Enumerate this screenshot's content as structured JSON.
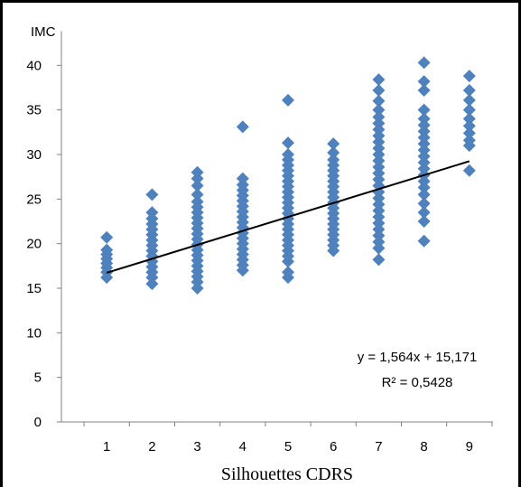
{
  "chart_data": {
    "type": "scatter",
    "ylabel": "IMC",
    "xlabel": "Silhouettes CDRS",
    "xlim": [
      0,
      10
    ],
    "ylim": [
      0,
      45
    ],
    "x_ticks": [
      1,
      2,
      3,
      4,
      5,
      6,
      7,
      8,
      9
    ],
    "y_ticks": [
      0,
      5,
      10,
      15,
      20,
      25,
      30,
      35,
      40
    ],
    "marker_color": "#4f81bd",
    "trendline": {
      "slope": 1.564,
      "intercept": 15.171,
      "equation": "y = 1,564x + 15,171",
      "r2": "R² = 0,5428",
      "color": "#000000"
    },
    "series": [
      {
        "points": [
          {
            "x": 1,
            "y": 16.2
          },
          {
            "x": 1,
            "y": 16.8
          },
          {
            "x": 1,
            "y": 17.3
          },
          {
            "x": 1,
            "y": 17.8
          },
          {
            "x": 1,
            "y": 18.3
          },
          {
            "x": 1,
            "y": 18.8
          },
          {
            "x": 1,
            "y": 19.3
          },
          {
            "x": 1,
            "y": 20.7
          },
          {
            "x": 2,
            "y": 15.5
          },
          {
            "x": 2,
            "y": 16.2
          },
          {
            "x": 2,
            "y": 16.8
          },
          {
            "x": 2,
            "y": 17.4
          },
          {
            "x": 2,
            "y": 18.0
          },
          {
            "x": 2,
            "y": 18.6
          },
          {
            "x": 2,
            "y": 19.2
          },
          {
            "x": 2,
            "y": 19.8
          },
          {
            "x": 2,
            "y": 20.4
          },
          {
            "x": 2,
            "y": 21.0
          },
          {
            "x": 2,
            "y": 21.6
          },
          {
            "x": 2,
            "y": 22.2
          },
          {
            "x": 2,
            "y": 22.8
          },
          {
            "x": 2,
            "y": 23.5
          },
          {
            "x": 2,
            "y": 25.5
          },
          {
            "x": 3,
            "y": 15.0
          },
          {
            "x": 3,
            "y": 15.7
          },
          {
            "x": 3,
            "y": 16.3
          },
          {
            "x": 3,
            "y": 16.9
          },
          {
            "x": 3,
            "y": 17.5
          },
          {
            "x": 3,
            "y": 18.1
          },
          {
            "x": 3,
            "y": 18.7
          },
          {
            "x": 3,
            "y": 19.3
          },
          {
            "x": 3,
            "y": 19.9
          },
          {
            "x": 3,
            "y": 20.5
          },
          {
            "x": 3,
            "y": 21.1
          },
          {
            "x": 3,
            "y": 21.7
          },
          {
            "x": 3,
            "y": 22.3
          },
          {
            "x": 3,
            "y": 22.9
          },
          {
            "x": 3,
            "y": 23.5
          },
          {
            "x": 3,
            "y": 24.1
          },
          {
            "x": 3,
            "y": 24.7
          },
          {
            "x": 3,
            "y": 25.5
          },
          {
            "x": 3,
            "y": 26.5
          },
          {
            "x": 3,
            "y": 27.3
          },
          {
            "x": 3,
            "y": 28.0
          },
          {
            "x": 4,
            "y": 17.0
          },
          {
            "x": 4,
            "y": 17.6
          },
          {
            "x": 4,
            "y": 18.2
          },
          {
            "x": 4,
            "y": 18.8
          },
          {
            "x": 4,
            "y": 19.4
          },
          {
            "x": 4,
            "y": 20.0
          },
          {
            "x": 4,
            "y": 20.6
          },
          {
            "x": 4,
            "y": 21.2
          },
          {
            "x": 4,
            "y": 21.8
          },
          {
            "x": 4,
            "y": 22.4
          },
          {
            "x": 4,
            "y": 23.0
          },
          {
            "x": 4,
            "y": 23.6
          },
          {
            "x": 4,
            "y": 24.2
          },
          {
            "x": 4,
            "y": 24.8
          },
          {
            "x": 4,
            "y": 25.4
          },
          {
            "x": 4,
            "y": 26.0
          },
          {
            "x": 4,
            "y": 26.6
          },
          {
            "x": 4,
            "y": 27.3
          },
          {
            "x": 4,
            "y": 33.1
          },
          {
            "x": 5,
            "y": 16.2
          },
          {
            "x": 5,
            "y": 16.8
          },
          {
            "x": 5,
            "y": 18.0
          },
          {
            "x": 5,
            "y": 18.6
          },
          {
            "x": 5,
            "y": 19.2
          },
          {
            "x": 5,
            "y": 19.8
          },
          {
            "x": 5,
            "y": 20.4
          },
          {
            "x": 5,
            "y": 21.0
          },
          {
            "x": 5,
            "y": 21.6
          },
          {
            "x": 5,
            "y": 22.2
          },
          {
            "x": 5,
            "y": 22.8
          },
          {
            "x": 5,
            "y": 23.4
          },
          {
            "x": 5,
            "y": 24.0
          },
          {
            "x": 5,
            "y": 24.6
          },
          {
            "x": 5,
            "y": 25.2
          },
          {
            "x": 5,
            "y": 25.8
          },
          {
            "x": 5,
            "y": 26.4
          },
          {
            "x": 5,
            "y": 27.0
          },
          {
            "x": 5,
            "y": 27.6
          },
          {
            "x": 5,
            "y": 28.2
          },
          {
            "x": 5,
            "y": 28.8
          },
          {
            "x": 5,
            "y": 29.4
          },
          {
            "x": 5,
            "y": 30.0
          },
          {
            "x": 5,
            "y": 31.3
          },
          {
            "x": 5,
            "y": 36.1
          },
          {
            "x": 6,
            "y": 19.2
          },
          {
            "x": 6,
            "y": 19.8
          },
          {
            "x": 6,
            "y": 20.4
          },
          {
            "x": 6,
            "y": 21.0
          },
          {
            "x": 6,
            "y": 21.6
          },
          {
            "x": 6,
            "y": 22.2
          },
          {
            "x": 6,
            "y": 22.8
          },
          {
            "x": 6,
            "y": 23.4
          },
          {
            "x": 6,
            "y": 24.0
          },
          {
            "x": 6,
            "y": 24.6
          },
          {
            "x": 6,
            "y": 25.2
          },
          {
            "x": 6,
            "y": 25.8
          },
          {
            "x": 6,
            "y": 26.4
          },
          {
            "x": 6,
            "y": 27.0
          },
          {
            "x": 6,
            "y": 27.6
          },
          {
            "x": 6,
            "y": 28.2
          },
          {
            "x": 6,
            "y": 28.8
          },
          {
            "x": 6,
            "y": 29.4
          },
          {
            "x": 6,
            "y": 30.2
          },
          {
            "x": 6,
            "y": 31.2
          },
          {
            "x": 7,
            "y": 18.2
          },
          {
            "x": 7,
            "y": 19.5
          },
          {
            "x": 7,
            "y": 20.2
          },
          {
            "x": 7,
            "y": 20.9
          },
          {
            "x": 7,
            "y": 21.6
          },
          {
            "x": 7,
            "y": 22.3
          },
          {
            "x": 7,
            "y": 23.0
          },
          {
            "x": 7,
            "y": 23.7
          },
          {
            "x": 7,
            "y": 24.4
          },
          {
            "x": 7,
            "y": 25.1
          },
          {
            "x": 7,
            "y": 25.8
          },
          {
            "x": 7,
            "y": 26.5
          },
          {
            "x": 7,
            "y": 27.2
          },
          {
            "x": 7,
            "y": 27.9
          },
          {
            "x": 7,
            "y": 28.6
          },
          {
            "x": 7,
            "y": 29.3
          },
          {
            "x": 7,
            "y": 30.0
          },
          {
            "x": 7,
            "y": 30.7
          },
          {
            "x": 7,
            "y": 31.4
          },
          {
            "x": 7,
            "y": 32.1
          },
          {
            "x": 7,
            "y": 32.8
          },
          {
            "x": 7,
            "y": 33.5
          },
          {
            "x": 7,
            "y": 34.2
          },
          {
            "x": 7,
            "y": 35.0
          },
          {
            "x": 7,
            "y": 36.0
          },
          {
            "x": 7,
            "y": 37.2
          },
          {
            "x": 7,
            "y": 38.4
          },
          {
            "x": 8,
            "y": 20.3
          },
          {
            "x": 8,
            "y": 22.5
          },
          {
            "x": 8,
            "y": 23.5
          },
          {
            "x": 8,
            "y": 24.5
          },
          {
            "x": 8,
            "y": 25.5
          },
          {
            "x": 8,
            "y": 26.3
          },
          {
            "x": 8,
            "y": 27.0
          },
          {
            "x": 8,
            "y": 27.7
          },
          {
            "x": 8,
            "y": 28.4
          },
          {
            "x": 8,
            "y": 29.1
          },
          {
            "x": 8,
            "y": 29.8
          },
          {
            "x": 8,
            "y": 30.5
          },
          {
            "x": 8,
            "y": 31.2
          },
          {
            "x": 8,
            "y": 31.9
          },
          {
            "x": 8,
            "y": 32.6
          },
          {
            "x": 8,
            "y": 33.3
          },
          {
            "x": 8,
            "y": 34.0
          },
          {
            "x": 8,
            "y": 35.0
          },
          {
            "x": 8,
            "y": 37.2
          },
          {
            "x": 8,
            "y": 38.2
          },
          {
            "x": 8,
            "y": 40.3
          },
          {
            "x": 9,
            "y": 28.2
          },
          {
            "x": 9,
            "y": 31.0
          },
          {
            "x": 9,
            "y": 31.6
          },
          {
            "x": 9,
            "y": 32.4
          },
          {
            "x": 9,
            "y": 33.2
          },
          {
            "x": 9,
            "y": 34.0
          },
          {
            "x": 9,
            "y": 35.0
          },
          {
            "x": 9,
            "y": 36.1
          },
          {
            "x": 9,
            "y": 37.2
          },
          {
            "x": 9,
            "y": 38.8
          }
        ]
      }
    ]
  }
}
